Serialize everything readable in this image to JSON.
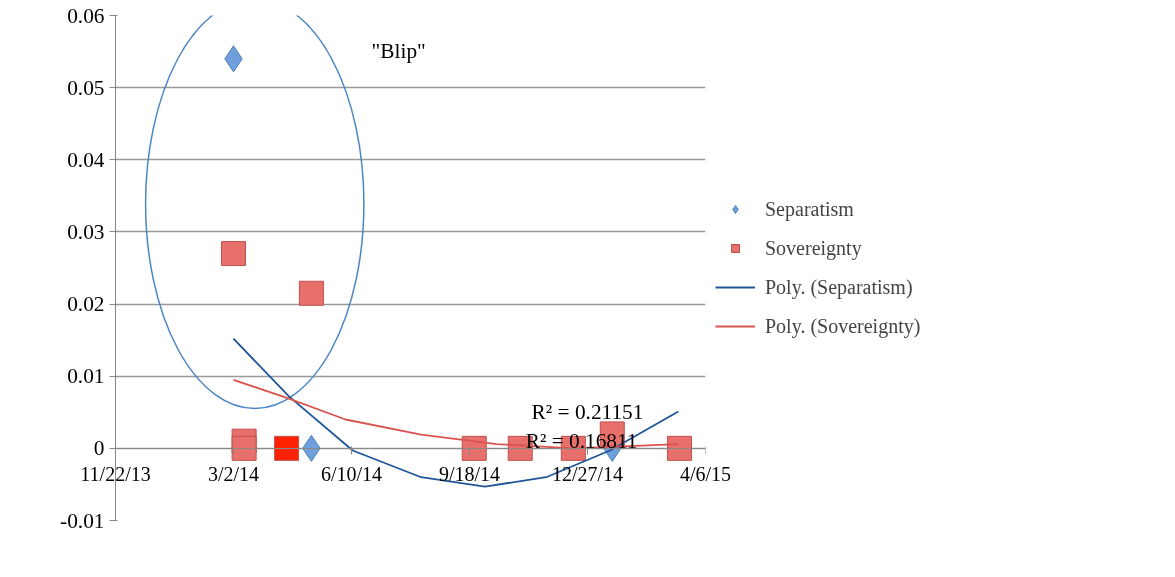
{
  "chart_data": {
    "type": "scatter",
    "xlim": [
      "2013-11-22",
      "2015-04-06"
    ],
    "xticks": [
      {
        "value": "2013-11-22",
        "label": "11/22/13"
      },
      {
        "value": "2014-03-02",
        "label": "3/2/14"
      },
      {
        "value": "2014-06-10",
        "label": "6/10/14"
      },
      {
        "value": "2014-09-18",
        "label": "9/18/14"
      },
      {
        "value": "2014-12-27",
        "label": "12/27/14"
      },
      {
        "value": "2015-04-06",
        "label": "4/6/15"
      }
    ],
    "ylim": [
      -0.01,
      0.06
    ],
    "yticks": [
      -0.01,
      0,
      0.01,
      0.02,
      0.03,
      0.04,
      0.05,
      0.06
    ],
    "grid": "y",
    "legend": "right",
    "series": [
      {
        "name": "Separatism",
        "marker": "diamond",
        "color": "#6fa0dc",
        "x": [
          "2014-03-02",
          "2014-05-07",
          "2015-01-17"
        ],
        "values": [
          0.054,
          0,
          0
        ]
      },
      {
        "name": "Sovereignty",
        "marker": "square",
        "color": "#e8706c",
        "colors": [
          "#e8706c",
          "#e8706c",
          "#e8706c",
          "#e8706c",
          "#ff2200",
          "#e8706c",
          "#e8706c",
          "#e8706c",
          "#e8706c",
          "#e8706c"
        ],
        "x": [
          "2014-03-02",
          "2014-05-07",
          "2014-03-11",
          "2014-03-11",
          "2014-04-16",
          "2014-09-22",
          "2014-10-31",
          "2014-12-15",
          "2015-01-17",
          "2015-03-15"
        ],
        "values": [
          0.027,
          0.0215,
          0.001,
          0,
          0,
          0,
          0,
          0,
          0.002,
          0
        ]
      },
      {
        "name": "Poly. (Separatism)",
        "type": "line",
        "color": "#1f5597",
        "x": [
          "2014-03-02",
          "2014-04-18",
          "2014-06-11",
          "2014-08-08",
          "2014-10-01",
          "2014-11-22",
          "2015-01-15",
          "2015-03-14"
        ],
        "values": [
          0.0152,
          0.0072,
          -0.0003,
          -0.004,
          -0.0053,
          -0.004,
          -0.0003,
          0.0051
        ]
      },
      {
        "name": "Poly. (Sovereignty)",
        "type": "line",
        "color": "#d9534f",
        "x": [
          "2014-03-02",
          "2014-04-18",
          "2014-06-05",
          "2014-08-08",
          "2014-10-11",
          "2014-12-15",
          "2015-03-14"
        ],
        "values": [
          0.0095,
          0.0069,
          0.004,
          0.0019,
          0.0006,
          0.0,
          0.0006
        ]
      }
    ],
    "annotations": [
      "\"Blip\"",
      "R² = 0.21151",
      "R² = 0.16811"
    ]
  }
}
